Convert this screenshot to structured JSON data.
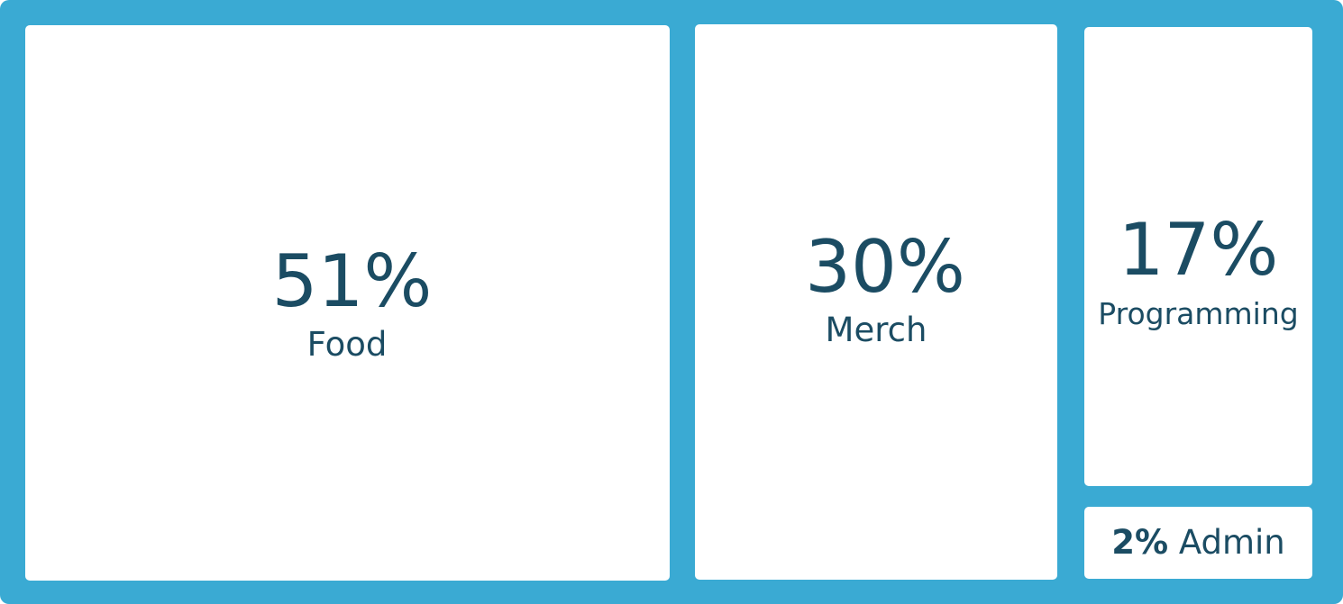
{
  "colors": {
    "background": "#3aaad3",
    "tile": "#ffffff",
    "text": "#1b4c63"
  },
  "chart_data": {
    "type": "treemap",
    "title": "",
    "series": [
      {
        "name": "Food",
        "value": 51,
        "value_label": "51%"
      },
      {
        "name": "Merch",
        "value": 30,
        "value_label": "30%"
      },
      {
        "name": "Programming",
        "value": 17,
        "value_label": "17%"
      },
      {
        "name": "Admin",
        "value": 2,
        "value_label": "2%"
      }
    ]
  }
}
